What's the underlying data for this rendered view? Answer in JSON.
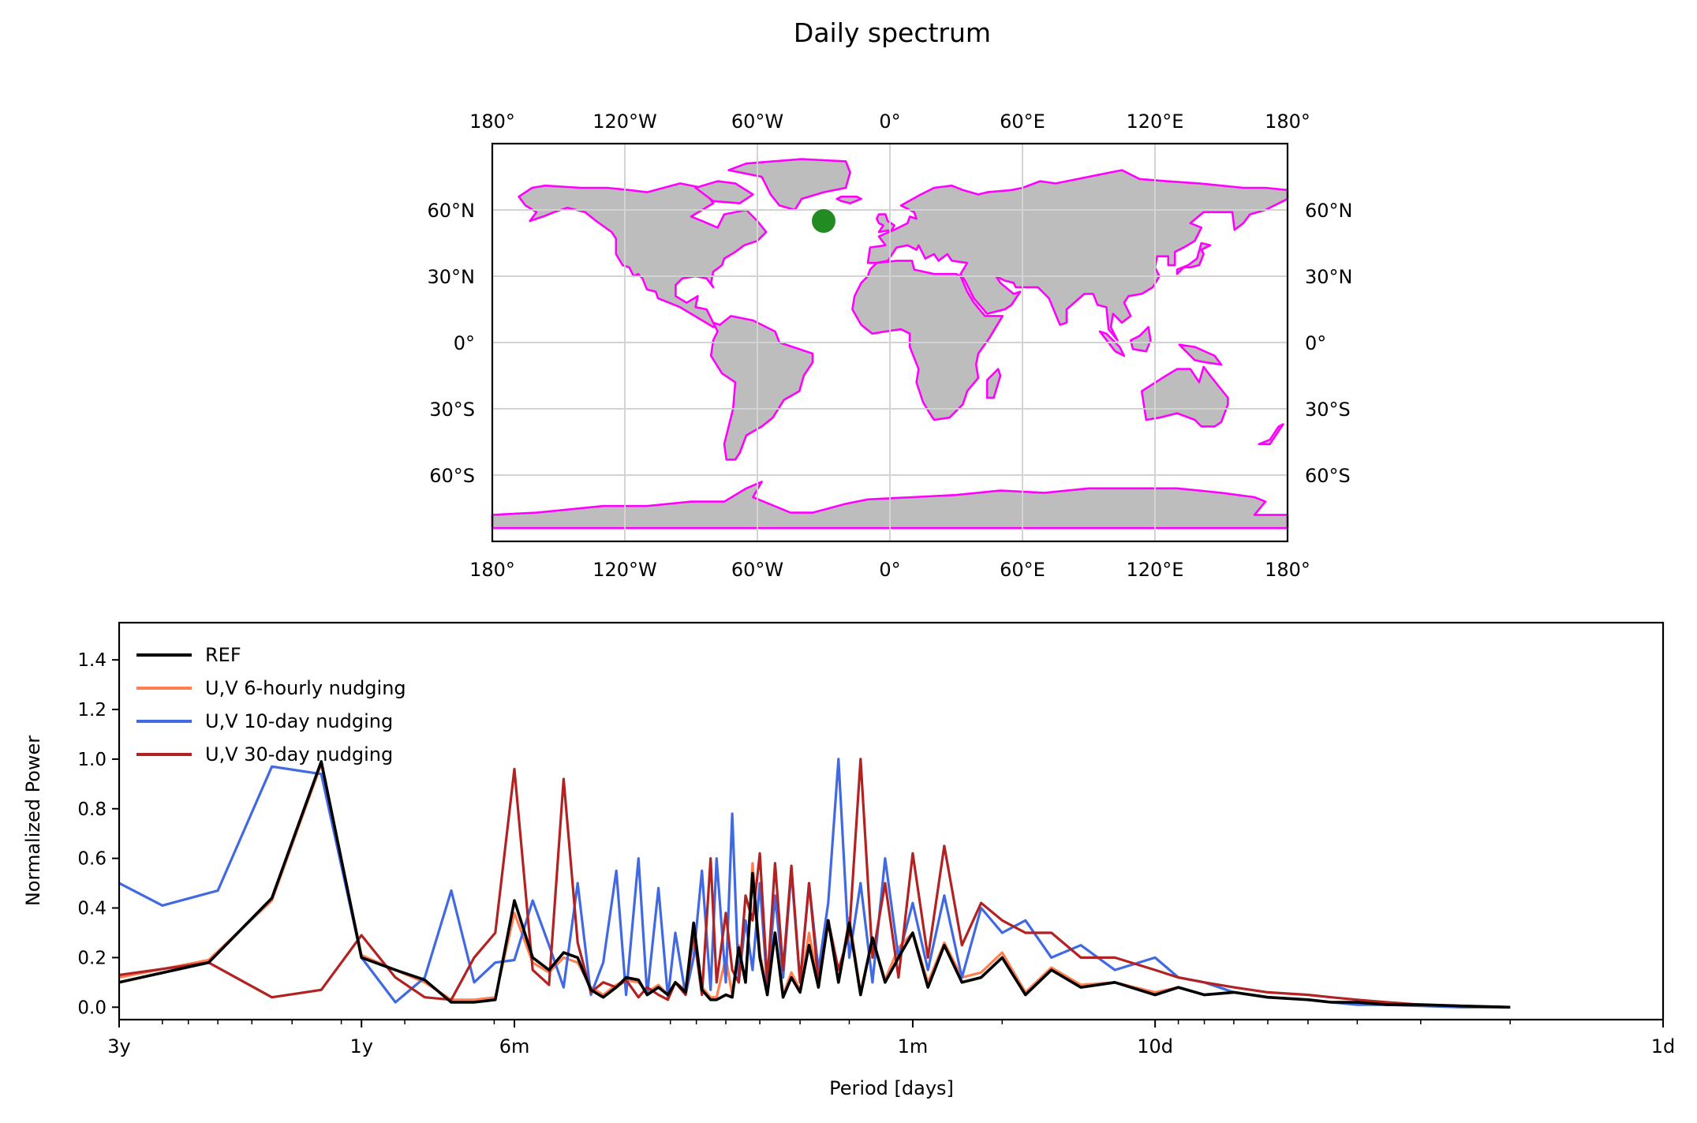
{
  "figure_title": "Daily spectrum",
  "map": {
    "top_lon_labels": [
      "180°",
      "120°W",
      "60°W",
      "0°",
      "60°E",
      "120°E",
      "180°"
    ],
    "bottom_lon_labels": [
      "180°",
      "120°W",
      "60°W",
      "0°",
      "60°E",
      "120°E",
      "180°"
    ],
    "left_lat_labels": [
      "60°N",
      "30°N",
      "0°",
      "30°S",
      "60°S"
    ],
    "right_lat_labels": [
      "60°N",
      "30°N",
      "0°",
      "30°S",
      "60°S"
    ],
    "lon_ticks": [
      -180,
      -120,
      -60,
      0,
      60,
      120,
      180
    ],
    "lat_ticks": [
      60,
      30,
      0,
      -30,
      -60
    ],
    "lat_range": [
      -90,
      90
    ],
    "lon_range": [
      -180,
      180
    ],
    "land_color": "#bdbdbd",
    "coast_color": "#ff00ff",
    "grid_color": "#d3d3d3",
    "marker": {
      "lon": -30,
      "lat": 55,
      "color": "#228b22"
    }
  },
  "chart_data": {
    "type": "line",
    "title": "",
    "xlabel": "Period [days]",
    "ylabel": "Normalized Power",
    "x_scale": "log",
    "x_direction": "decreasing",
    "xlim_days": [
      1095,
      1
    ],
    "ylim": [
      -0.05,
      1.55
    ],
    "yticks": [
      0.0,
      0.2,
      0.4,
      0.6,
      0.8,
      1.0,
      1.2,
      1.4
    ],
    "ytick_labels": [
      "0.0",
      "0.2",
      "0.4",
      "0.6",
      "0.8",
      "1.0",
      "1.2",
      "1.4"
    ],
    "xticks": [
      {
        "days": 1095,
        "label": "3y"
      },
      {
        "days": 365,
        "label": "1y"
      },
      {
        "days": 182.5,
        "label": "6m"
      },
      {
        "days": 30,
        "label": "1m"
      },
      {
        "days": 10,
        "label": "10d"
      },
      {
        "days": 1,
        "label": "1d"
      }
    ],
    "legend_position": "top-left",
    "series": [
      {
        "name": "REF",
        "color": "#000000",
        "x": [
          1095,
          730,
          548,
          438,
          365,
          313,
          274,
          243,
          219,
          199,
          182.5,
          168,
          156,
          146,
          137,
          129,
          122,
          115,
          110,
          104,
          100,
          95,
          91,
          88,
          84,
          81,
          78,
          75,
          73,
          70,
          68,
          66,
          64,
          62,
          60,
          58,
          56,
          54,
          52,
          50,
          48,
          46,
          44,
          42,
          40,
          38,
          36,
          34,
          32,
          30,
          28,
          26,
          24,
          22,
          20,
          18,
          16,
          14,
          12,
          10,
          9,
          8,
          7,
          6,
          5,
          4.5,
          4,
          3.5,
          3,
          2.5,
          2
        ],
        "y": [
          0.1,
          0.18,
          0.44,
          0.99,
          0.2,
          0.15,
          0.11,
          0.02,
          0.02,
          0.03,
          0.43,
          0.2,
          0.15,
          0.22,
          0.2,
          0.07,
          0.04,
          0.08,
          0.12,
          0.11,
          0.05,
          0.08,
          0.05,
          0.1,
          0.06,
          0.34,
          0.07,
          0.03,
          0.03,
          0.05,
          0.04,
          0.24,
          0.1,
          0.54,
          0.2,
          0.05,
          0.3,
          0.04,
          0.12,
          0.06,
          0.25,
          0.08,
          0.35,
          0.1,
          0.34,
          0.05,
          0.28,
          0.1,
          0.2,
          0.3,
          0.08,
          0.25,
          0.1,
          0.12,
          0.2,
          0.05,
          0.15,
          0.08,
          0.1,
          0.05,
          0.08,
          0.05,
          0.06,
          0.04,
          0.03,
          0.02,
          0.02,
          0.01,
          0.01,
          0.005,
          0.0
        ]
      },
      {
        "name": "U,V 6-hourly nudging",
        "color": "#ff7f50",
        "x": [
          1095,
          730,
          548,
          438,
          365,
          313,
          274,
          243,
          219,
          199,
          182.5,
          168,
          156,
          146,
          137,
          129,
          122,
          115,
          110,
          104,
          100,
          95,
          91,
          88,
          84,
          81,
          78,
          75,
          73,
          70,
          68,
          66,
          64,
          62,
          60,
          58,
          56,
          54,
          52,
          50,
          48,
          46,
          44,
          42,
          40,
          38,
          36,
          34,
          32,
          30,
          28,
          26,
          24,
          22,
          20,
          18,
          16,
          14,
          12,
          10,
          9,
          8,
          7,
          6,
          5,
          4.5,
          4,
          3.5,
          3,
          2.5,
          2
        ],
        "y": [
          0.12,
          0.19,
          0.43,
          0.98,
          0.21,
          0.15,
          0.1,
          0.03,
          0.03,
          0.04,
          0.38,
          0.18,
          0.14,
          0.2,
          0.18,
          0.08,
          0.05,
          0.09,
          0.11,
          0.1,
          0.06,
          0.09,
          0.05,
          0.1,
          0.07,
          0.32,
          0.08,
          0.04,
          0.04,
          0.2,
          0.05,
          0.25,
          0.1,
          0.58,
          0.22,
          0.06,
          0.3,
          0.05,
          0.14,
          0.07,
          0.3,
          0.09,
          0.35,
          0.1,
          0.36,
          0.06,
          0.28,
          0.11,
          0.24,
          0.3,
          0.1,
          0.26,
          0.12,
          0.14,
          0.22,
          0.06,
          0.16,
          0.09,
          0.1,
          0.06,
          0.08,
          0.05,
          0.06,
          0.04,
          0.03,
          0.02,
          0.02,
          0.01,
          0.01,
          0.005,
          0.0
        ]
      },
      {
        "name": "U,V 10-day nudging",
        "color": "#4169e1",
        "x": [
          1095,
          900,
          700,
          548,
          438,
          365,
          313,
          274,
          243,
          219,
          199,
          182.5,
          168,
          156,
          146,
          137,
          129,
          122,
          115,
          110,
          104,
          100,
          95,
          91,
          88,
          84,
          81,
          78,
          75,
          73,
          70,
          68,
          66,
          64,
          62,
          60,
          58,
          56,
          54,
          52,
          50,
          48,
          46,
          44,
          42,
          40,
          38,
          36,
          34,
          32,
          30,
          28,
          26,
          24,
          22,
          20,
          18,
          16,
          14,
          12,
          10,
          9,
          8,
          7,
          6,
          5,
          4.5,
          4,
          3.5,
          3,
          2.5,
          2
        ],
        "y": [
          0.5,
          0.41,
          0.47,
          0.97,
          0.94,
          0.2,
          0.02,
          0.12,
          0.47,
          0.1,
          0.18,
          0.19,
          0.43,
          0.25,
          0.08,
          0.5,
          0.05,
          0.18,
          0.55,
          0.05,
          0.6,
          0.05,
          0.48,
          0.04,
          0.3,
          0.05,
          0.2,
          0.55,
          0.07,
          0.6,
          0.1,
          0.78,
          0.1,
          0.35,
          0.15,
          0.5,
          0.08,
          0.45,
          0.12,
          0.55,
          0.1,
          0.5,
          0.15,
          0.42,
          1.0,
          0.2,
          0.5,
          0.1,
          0.6,
          0.2,
          0.42,
          0.15,
          0.45,
          0.12,
          0.4,
          0.3,
          0.35,
          0.2,
          0.25,
          0.15,
          0.2,
          0.12,
          0.1,
          0.06,
          0.04,
          0.03,
          0.02,
          0.01,
          0.01,
          0.005,
          0.0,
          0.0
        ]
      },
      {
        "name": "U,V 30-day nudging",
        "color": "#b22222",
        "x": [
          1095,
          730,
          548,
          438,
          365,
          313,
          274,
          243,
          219,
          199,
          182.5,
          168,
          156,
          146,
          137,
          129,
          122,
          115,
          110,
          104,
          100,
          95,
          91,
          88,
          84,
          81,
          78,
          75,
          73,
          70,
          68,
          66,
          64,
          62,
          60,
          58,
          56,
          54,
          52,
          50,
          48,
          46,
          44,
          42,
          40,
          38,
          36,
          34,
          32,
          30,
          28,
          26,
          24,
          22,
          20,
          18,
          16,
          14,
          12,
          10,
          9,
          8,
          7,
          6,
          5,
          4.5,
          4,
          3.5,
          3,
          2.5,
          2
        ],
        "y": [
          0.13,
          0.18,
          0.04,
          0.07,
          0.29,
          0.12,
          0.04,
          0.03,
          0.2,
          0.3,
          0.96,
          0.15,
          0.09,
          0.92,
          0.26,
          0.06,
          0.1,
          0.08,
          0.11,
          0.04,
          0.08,
          0.05,
          0.03,
          0.1,
          0.05,
          0.3,
          0.05,
          0.6,
          0.1,
          0.38,
          0.15,
          0.1,
          0.45,
          0.35,
          0.62,
          0.1,
          0.58,
          0.15,
          0.57,
          0.1,
          0.5,
          0.1,
          0.35,
          0.15,
          0.3,
          1.0,
          0.2,
          0.5,
          0.12,
          0.62,
          0.2,
          0.65,
          0.25,
          0.42,
          0.35,
          0.3,
          0.3,
          0.2,
          0.2,
          0.15,
          0.12,
          0.1,
          0.08,
          0.06,
          0.05,
          0.04,
          0.03,
          0.02,
          0.01,
          0.005,
          0.0
        ]
      }
    ]
  }
}
